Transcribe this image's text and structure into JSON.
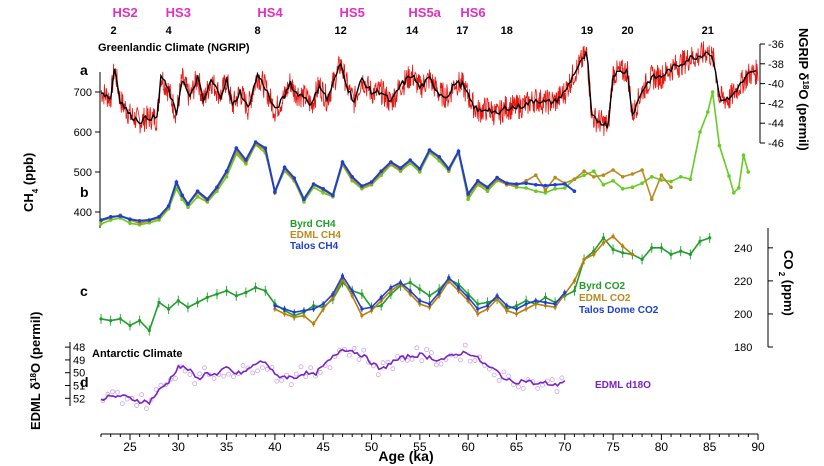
{
  "figure": {
    "hs_labels": [
      {
        "text": "HS2",
        "age": 24.5
      },
      {
        "text": "HS3",
        "age": 30.0
      },
      {
        "text": "HS4",
        "age": 39.5
      },
      {
        "text": "HS5",
        "age": 48.0
      },
      {
        "text": "HS5a",
        "age": 55.5
      },
      {
        "text": "HS6",
        "age": 60.5
      }
    ],
    "dansgaard_oeschger_events": [
      {
        "text": "2",
        "age": 23.3
      },
      {
        "text": "4",
        "age": 29.0
      },
      {
        "text": "8",
        "age": 38.2
      },
      {
        "text": "12",
        "age": 46.8
      },
      {
        "text": "14",
        "age": 54.2
      },
      {
        "text": "17",
        "age": 59.4
      },
      {
        "text": "18",
        "age": 64.0
      },
      {
        "text": "19",
        "age": 72.3
      },
      {
        "text": "20",
        "age": 76.5
      },
      {
        "text": "21",
        "age": 84.8
      }
    ],
    "annotations": {
      "greenland_climate": "Greenlandic Climate (NGRIP)",
      "antarctic_climate": "Antarctic Climate"
    },
    "panel_letters": {
      "a": "a",
      "b": "b",
      "c": "c",
      "d": "d"
    },
    "colors": {
      "hs": "#e030c0",
      "ngrip_raw": "#e8150f",
      "ngrip_smooth": "#000000",
      "byrd": "#66cc22",
      "edml_ch4": "#b88a1f",
      "talos": "#1f3fcc",
      "byrd_co2": "#1f9e2a",
      "edml_co2": "#b8800f",
      "talos_co2": "#1f3fcc",
      "edml_d18o": "#7a22c8",
      "edml_d18o_raw": "#c9a6e8"
    }
  },
  "chart_data": [
    {
      "type": "line",
      "panel": "a",
      "title": "",
      "xlabel": "Age (ka)",
      "ylabel": "NGRIP δ18O (permil)",
      "ylim": [
        -46,
        -36
      ],
      "yticks": [
        "-36",
        "-38",
        "-40",
        "-42",
        "-44",
        "-46"
      ],
      "series": [
        {
          "x": [
            22,
            23,
            23.4,
            24,
            25,
            26,
            27,
            27.8,
            28.2,
            29,
            29.8,
            30.4,
            31.2,
            32,
            32.6,
            33.4,
            34.4,
            35,
            35.6,
            36.4,
            37.2,
            38.2,
            39,
            40,
            41,
            41.6,
            42,
            43.2,
            43.8,
            44.6,
            45.4,
            46.8,
            47.6,
            48.2,
            49,
            50,
            51,
            52,
            53,
            54.2,
            55,
            56,
            57,
            58,
            58.6,
            59.4,
            60.4,
            61,
            62,
            63,
            63.9,
            65,
            66,
            67,
            68,
            69,
            70,
            71,
            72.3,
            72.8,
            74,
            74.5,
            75,
            76.5,
            77,
            78,
            79,
            80,
            81,
            82,
            83,
            84,
            84.8,
            85.5,
            86,
            87,
            88,
            89,
            90
          ],
          "y": [
            -40.8,
            -41.5,
            -38.4,
            -41.7,
            -43.2,
            -43.8,
            -43.4,
            -43.5,
            -39.2,
            -40.7,
            -43.1,
            -39.5,
            -41.5,
            -39.3,
            -41.8,
            -39.7,
            -41.2,
            -39.6,
            -42.3,
            -40.8,
            -42.5,
            -39.1,
            -40.4,
            -42.7,
            -41.3,
            -39.8,
            -40.8,
            -41.4,
            -42.2,
            -40.1,
            -41.6,
            -38.0,
            -40.6,
            -41.8,
            -39.5,
            -40.9,
            -40.8,
            -41.9,
            -40.2,
            -39.1,
            -40.4,
            -39.5,
            -41.0,
            -41.3,
            -39.9,
            -40.1,
            -42.0,
            -42.8,
            -42.5,
            -43.2,
            -42.4,
            -42.4,
            -42.1,
            -41.6,
            -41.9,
            -41.8,
            -40.9,
            -38.9,
            -36.9,
            -43.4,
            -44.0,
            -44.3,
            -39.0,
            -38.7,
            -43.2,
            -40.7,
            -39.4,
            -39.3,
            -38.5,
            -38.0,
            -37.4,
            -37.2,
            -36.7,
            -37.8,
            -41.5,
            -41.6,
            -40.3,
            -39.1,
            -38.8
          ]
        }
      ]
    },
    {
      "type": "line",
      "panel": "b",
      "title": "",
      "xlabel": "Age (ka)",
      "ylabel": "CH4 (ppb)",
      "ylim": [
        350,
        800
      ],
      "yticks": [
        "400",
        "500",
        "600",
        "700"
      ],
      "series": [
        {
          "name": "Byrd CH4",
          "x": [
            22,
            23,
            24,
            25,
            26,
            27,
            28,
            29,
            29.8,
            30.4,
            31,
            32,
            33,
            34,
            35,
            36,
            37,
            38,
            39,
            40,
            41,
            42,
            43,
            44,
            45,
            46,
            47,
            48,
            49,
            50,
            51,
            52,
            53,
            54,
            55,
            56,
            57,
            58,
            59,
            60,
            61,
            62,
            63,
            64,
            65,
            66,
            67,
            68,
            69,
            70,
            71,
            72,
            73,
            74,
            75,
            76,
            77,
            78,
            79,
            80,
            81,
            82,
            83,
            84,
            84.8,
            85.3,
            86,
            87,
            87.5,
            88,
            88.5,
            89
          ],
          "y": [
            370,
            380,
            385,
            372,
            368,
            373,
            380,
            408,
            458,
            432,
            412,
            438,
            425,
            452,
            488,
            545,
            520,
            568,
            548,
            452,
            502,
            478,
            425,
            462,
            448,
            438,
            518,
            478,
            458,
            468,
            492,
            518,
            502,
            522,
            500,
            548,
            528,
            502,
            548,
            432,
            468,
            452,
            478,
            470,
            462,
            460,
            452,
            448,
            458,
            460,
            482,
            492,
            502,
            468,
            478,
            458,
            462,
            472,
            488,
            480,
            476,
            488,
            482,
            600,
            650,
            700,
            566,
            490,
            448,
            460,
            542,
            500
          ]
        },
        {
          "name": "EDML CH4",
          "x": [
            22,
            23,
            24,
            25,
            26,
            27,
            28,
            29,
            29.8,
            30.4,
            31,
            32,
            33,
            34,
            35,
            36,
            37,
            38,
            39,
            40,
            41,
            42,
            43,
            44,
            45,
            46,
            47,
            48,
            49,
            50,
            51,
            52,
            53,
            54,
            55,
            56,
            57,
            58,
            59,
            60,
            61,
            62,
            63,
            64,
            65,
            66,
            67,
            68,
            69,
            70,
            71,
            72,
            73,
            74,
            75,
            76,
            77,
            78,
            79,
            80,
            81
          ],
          "y": [
            378,
            385,
            392,
            380,
            372,
            378,
            385,
            412,
            470,
            440,
            418,
            448,
            428,
            458,
            498,
            552,
            525,
            570,
            555,
            448,
            508,
            480,
            430,
            468,
            455,
            440,
            520,
            482,
            462,
            470,
            498,
            520,
            505,
            528,
            505,
            552,
            535,
            505,
            550,
            440,
            472,
            458,
            482,
            468,
            466,
            478,
            492,
            455,
            486,
            472,
            482,
            502,
            488,
            492,
            505,
            488,
            495,
            505,
            432,
            492,
            462
          ]
        },
        {
          "name": "Talos CH4",
          "x": [
            22,
            23,
            24,
            25,
            26,
            27,
            28,
            29,
            29.8,
            30.4,
            31,
            32,
            33,
            34,
            35,
            36,
            37,
            38,
            39,
            40,
            41,
            42,
            43,
            44,
            45,
            46,
            47,
            48,
            49,
            50,
            51,
            52,
            53,
            54,
            55,
            56,
            57,
            58,
            59,
            60,
            61,
            62,
            63,
            64,
            65,
            66,
            67,
            68,
            69,
            70,
            71
          ],
          "y": [
            380,
            388,
            390,
            382,
            378,
            380,
            388,
            415,
            475,
            442,
            420,
            452,
            432,
            462,
            502,
            560,
            530,
            575,
            560,
            450,
            512,
            485,
            432,
            470,
            458,
            442,
            525,
            488,
            465,
            475,
            502,
            525,
            510,
            530,
            508,
            555,
            538,
            508,
            552,
            445,
            478,
            462,
            486,
            472,
            470,
            472,
            468,
            466,
            468,
            470,
            452
          ]
        }
      ]
    },
    {
      "type": "line",
      "panel": "c",
      "title": "",
      "xlabel": "Age (ka)",
      "ylabel": "CO2 (ppm)",
      "ylim": [
        180,
        252
      ],
      "yticks": [
        "180",
        "200",
        "220",
        "240"
      ],
      "series": [
        {
          "name": "Byrd CO2",
          "x": [
            22,
            23,
            24,
            25,
            26,
            27,
            28,
            29,
            30,
            31,
            32,
            33,
            34,
            35,
            36,
            37,
            38,
            39,
            40,
            41,
            42,
            43,
            44,
            45,
            46,
            47,
            48,
            49,
            50,
            51,
            52,
            53,
            54,
            55,
            56,
            57,
            58,
            59,
            60,
            61,
            62,
            63,
            64,
            65,
            66,
            67,
            68,
            69,
            70,
            71,
            72,
            73,
            74,
            75,
            76,
            77,
            78,
            79,
            80,
            81,
            82,
            83,
            84,
            85
          ],
          "y": [
            197,
            196,
            197,
            193,
            196,
            190,
            207,
            203,
            208,
            204,
            207,
            210,
            212,
            214,
            211,
            213,
            216,
            214,
            206,
            202,
            199,
            201,
            205,
            204,
            209,
            219,
            214,
            212,
            204,
            205,
            212,
            217,
            219,
            215,
            211,
            215,
            221,
            218,
            212,
            206,
            207,
            209,
            203,
            205,
            208,
            206,
            210,
            207,
            211,
            214,
            233,
            238,
            246,
            239,
            237,
            236,
            233,
            240,
            240,
            236,
            238,
            236,
            244,
            246
          ]
        },
        {
          "name": "EDML CO2",
          "x": [
            40,
            41,
            42,
            43,
            44,
            45,
            46,
            47,
            48,
            49,
            50,
            51,
            52,
            53,
            54,
            55,
            56,
            57,
            58,
            59,
            60,
            61,
            62,
            63,
            64,
            65,
            66,
            67,
            68,
            69,
            70,
            71,
            72,
            73,
            74,
            75,
            76,
            77
          ],
          "y": [
            203,
            200,
            198,
            199,
            194,
            203,
            210,
            221,
            211,
            199,
            202,
            208,
            214,
            218,
            212,
            206,
            204,
            211,
            220,
            214,
            208,
            200,
            203,
            209,
            202,
            200,
            203,
            206,
            205,
            204,
            212,
            220,
            233,
            236,
            243,
            247,
            241,
            236
          ]
        },
        {
          "name": "Talos Dome CO2",
          "x": [
            40,
            41,
            42,
            43,
            44,
            45,
            46,
            47,
            48,
            49,
            50,
            51,
            52,
            53,
            54,
            55,
            56,
            57,
            58,
            59,
            60,
            61,
            62,
            63,
            64,
            65,
            66,
            67,
            68,
            69,
            70
          ],
          "y": [
            205,
            203,
            201,
            202,
            203,
            206,
            212,
            223,
            214,
            203,
            204,
            210,
            216,
            219,
            214,
            208,
            206,
            213,
            222,
            216,
            210,
            203,
            205,
            211,
            205,
            203,
            206,
            208,
            207,
            206,
            213
          ]
        }
      ]
    },
    {
      "type": "line",
      "panel": "d",
      "title": "",
      "xlabel": "Age (ka)",
      "ylabel": "EDML δ18O (permil)",
      "ylim": [
        -52.6,
        -47.6
      ],
      "yticks": [
        "48",
        "49",
        "50",
        "51",
        "52"
      ],
      "series": [
        {
          "name": "EDML d18O",
          "x": [
            22,
            23,
            24,
            25,
            26,
            27,
            28,
            29,
            30,
            31,
            32,
            33,
            34,
            35,
            36,
            37,
            38,
            39,
            40,
            41,
            42,
            43,
            44,
            45,
            46,
            47,
            48,
            49,
            50,
            51,
            52,
            53,
            54,
            55,
            56,
            57,
            58,
            59,
            60,
            61,
            62,
            63,
            64,
            65,
            66,
            67,
            68,
            69,
            70
          ],
          "y": [
            -52.0,
            -51.9,
            -51.8,
            -52.0,
            -52.2,
            -52.3,
            -51.4,
            -50.7,
            -49.5,
            -49.7,
            -50.5,
            -50.0,
            -50.2,
            -49.6,
            -50.1,
            -49.9,
            -49.3,
            -49.1,
            -50.2,
            -50.3,
            -50.4,
            -50.0,
            -50.2,
            -49.5,
            -48.8,
            -48.1,
            -48.3,
            -48.6,
            -49.2,
            -49.8,
            -49.2,
            -48.9,
            -48.7,
            -48.6,
            -48.8,
            -49.0,
            -48.8,
            -48.5,
            -48.4,
            -48.9,
            -49.5,
            -49.9,
            -50.6,
            -50.7,
            -50.6,
            -50.9,
            -50.8,
            -51.0,
            -50.6
          ]
        }
      ]
    }
  ],
  "axis": {
    "xlabel": "Age (ka)",
    "xmin": 22,
    "xmax": 90,
    "xticks": [
      25,
      30,
      35,
      40,
      45,
      50,
      55,
      60,
      65,
      70,
      75,
      80,
      85,
      90
    ],
    "xtick_labels": [
      "25",
      "30",
      "35",
      "40",
      "45",
      "50",
      "55",
      "60",
      "65",
      "70",
      "75",
      "80",
      "85",
      "90"
    ]
  },
  "legends": {
    "ch4": [
      "Byrd CH4",
      "EDML CH4",
      "Talos CH4"
    ],
    "co2": [
      "Byrd CO2",
      "EDML CO2",
      "Talos Dome CO2"
    ],
    "d18o": "EDML d18O"
  }
}
